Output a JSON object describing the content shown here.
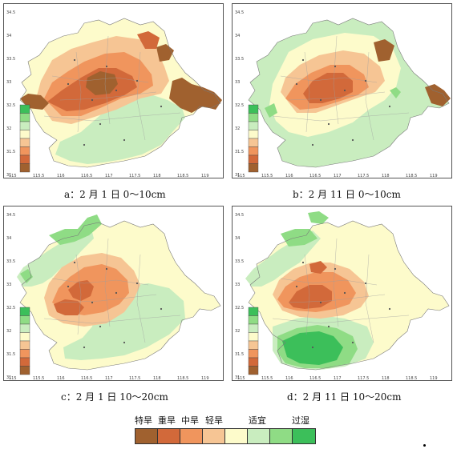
{
  "panels": [
    {
      "caption": "a：2 月 1 日 0～10cm",
      "y_ticks": [
        "34.5",
        "34",
        "33.5",
        "33",
        "32.5",
        "32",
        "31.5",
        "31"
      ],
      "x_ticks": [
        "115",
        "115.5",
        "116",
        "116.5",
        "117",
        "117.5",
        "118",
        "118.5",
        "119"
      ],
      "scheme": "a"
    },
    {
      "caption": "b：2 月 11 日 0～10cm",
      "y_ticks": [
        "34.5",
        "34",
        "33.5",
        "33",
        "32.5",
        "32",
        "31.5",
        "31"
      ],
      "x_ticks": [
        "115",
        "115.5",
        "116",
        "116.5",
        "117",
        "117.5",
        "118",
        "118.5",
        "119"
      ],
      "scheme": "b"
    },
    {
      "caption": "c：2 月 1 日 10～20cm",
      "y_ticks": [
        "34.5",
        "34",
        "33.5",
        "33",
        "32.5",
        "32",
        "31.5",
        "31"
      ],
      "x_ticks": [
        "115",
        "115.5",
        "116",
        "116.5",
        "117",
        "117.5",
        "118",
        "118.5",
        "119"
      ],
      "scheme": "c"
    },
    {
      "caption": "d：2 月 11 日 10～20cm",
      "y_ticks": [
        "34.5",
        "34",
        "33.5",
        "33",
        "32.5",
        "32",
        "31.5",
        "31"
      ],
      "x_ticks": [
        "115",
        "115.5",
        "116",
        "116.5",
        "117",
        "117.5",
        "118",
        "118.5",
        "119"
      ],
      "scheme": "d"
    }
  ],
  "legend": {
    "categories": [
      {
        "label": "特旱",
        "color": "#a0612f"
      },
      {
        "label": "重旱",
        "color": "#d2693a"
      },
      {
        "label": "中旱",
        "color": "#f0955d"
      },
      {
        "label": "轻旱",
        "color": "#f6c594"
      },
      {
        "label": "",
        "color": "#fdfbcb"
      },
      {
        "label": "适宜",
        "color": "#c9edbf"
      },
      {
        "label": "",
        "color": "#8fdc85"
      },
      {
        "label": "过湿",
        "color": "#3cbf5a"
      }
    ]
  },
  "mini_legend_colors": [
    "#3cbf5a",
    "#8fdc85",
    "#c9edbf",
    "#fdfbcb",
    "#f6c594",
    "#f0955d",
    "#d2693a",
    "#a0612f"
  ]
}
